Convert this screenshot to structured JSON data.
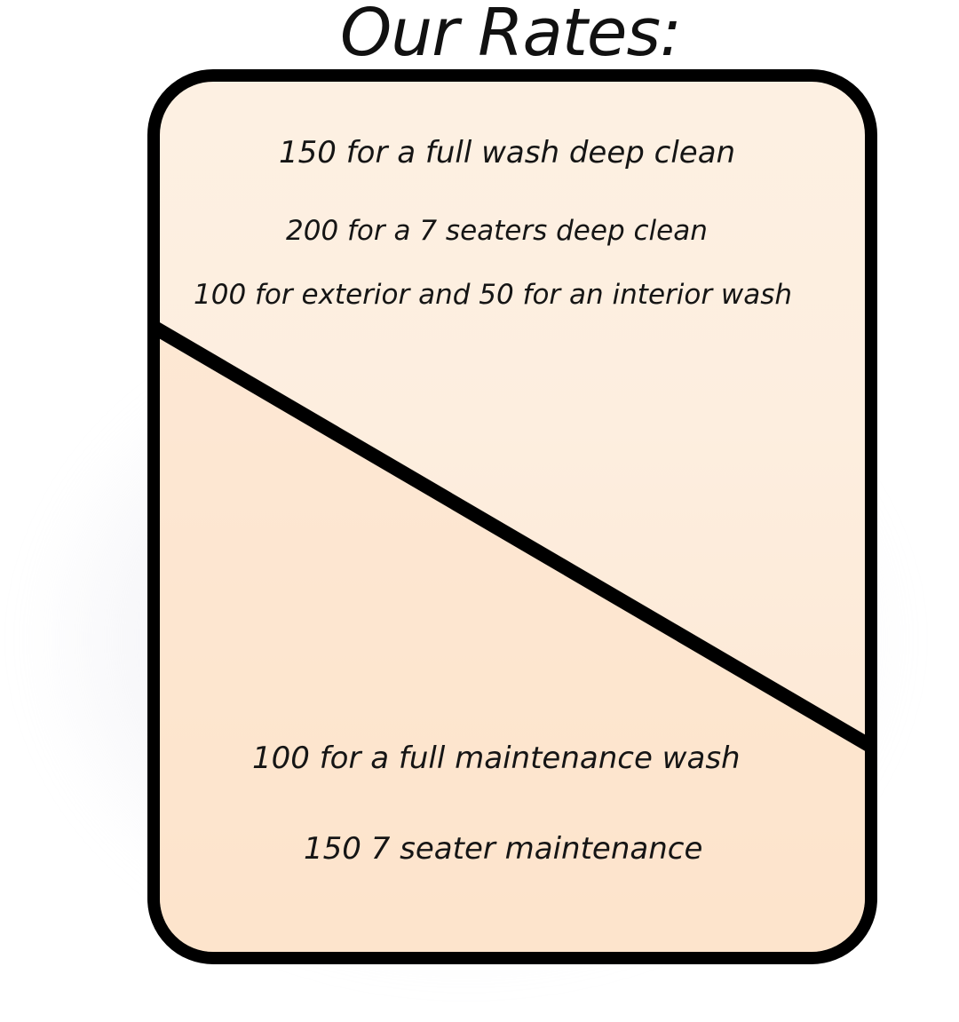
{
  "title": "Our Rates:",
  "rates_upper": [
    "150 for a full wash deep clean",
    "200 for a 7 seaters deep clean",
    "100 for exterior and 50 for an interior wash"
  ],
  "rates_lower": [
    "100 for a full maintenance wash",
    "150 7 seater maintenance"
  ],
  "colors": {
    "card_fill_top": "#fdf0e2",
    "card_fill_bottom": "#fde6d0",
    "border": "#000000"
  }
}
